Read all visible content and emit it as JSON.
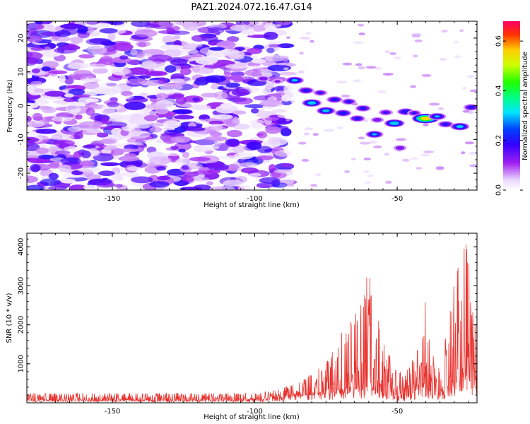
{
  "title": "PAZ1.2024.072.16.47.G14",
  "colorbar": {
    "label": "Normalized spectral amplitude",
    "range": [
      0.0,
      0.68
    ],
    "ticks": [
      "0.0",
      "0.2",
      "0.4",
      "0.6"
    ],
    "tick_values": [
      0.0,
      0.2,
      0.4,
      0.6
    ]
  },
  "colors": {
    "snr_line": "#e8332f"
  },
  "chart_data": [
    {
      "type": "heatmap",
      "xlabel": "Height of straight line (km)",
      "ylabel": "Frequency (Hz)",
      "xlim": [
        -180,
        -22
      ],
      "ylim": [
        -25,
        25
      ],
      "xticks": [
        "-150",
        "-100",
        "-50"
      ],
      "xtick_values": [
        -150,
        -100,
        -50
      ],
      "yticks": [
        "20",
        "10",
        "0",
        "-10",
        "-20"
      ],
      "ytick_values": [
        20,
        10,
        0,
        -10,
        -20
      ],
      "colormap": "gist_rainbow-like (white to purple to blue to green to yellow to red)",
      "features": {
        "background_noise_region_km": [
          -180,
          -90
        ],
        "background_amplitude": [
          0.02,
          0.2
        ],
        "signal_track": [
          {
            "x": -97,
            "f": 8.0,
            "amp": 0.18
          },
          {
            "x": -92,
            "f": 7.2,
            "amp": 0.14
          },
          {
            "x": -86,
            "f": 7.5,
            "amp": 0.32
          },
          {
            "x": -82,
            "f": 4.5,
            "amp": 0.25
          },
          {
            "x": -80,
            "f": 0.8,
            "amp": 0.36
          },
          {
            "x": -77,
            "f": 3.8,
            "amp": 0.2
          },
          {
            "x": -75,
            "f": -1.5,
            "amp": 0.34
          },
          {
            "x": -72,
            "f": 1.8,
            "amp": 0.25
          },
          {
            "x": -69,
            "f": -2.2,
            "amp": 0.27
          },
          {
            "x": -67,
            "f": 1.2,
            "amp": 0.22
          },
          {
            "x": -64,
            "f": -3.8,
            "amp": 0.24
          },
          {
            "x": -62,
            "f": -0.8,
            "amp": 0.24
          },
          {
            "x": -58,
            "f": -8.5,
            "amp": 0.3
          },
          {
            "x": -57,
            "f": -4.2,
            "amp": 0.18
          },
          {
            "x": -54,
            "f": -2.0,
            "amp": 0.2
          },
          {
            "x": -51,
            "f": -5.2,
            "amp": 0.38
          },
          {
            "x": -49,
            "f": -12.5,
            "amp": 0.18
          },
          {
            "x": -47,
            "f": -1.8,
            "amp": 0.28
          },
          {
            "x": -44,
            "f": -2.2,
            "amp": 0.2
          },
          {
            "x": -40,
            "f": -3.8,
            "amp": 0.62
          },
          {
            "x": -36,
            "f": -3.2,
            "amp": 0.3
          },
          {
            "x": -33,
            "f": -5.5,
            "amp": 0.24
          },
          {
            "x": -28,
            "f": -6.2,
            "amp": 0.34
          },
          {
            "x": -24,
            "f": -0.5,
            "amp": 0.24
          },
          {
            "x": -35,
            "f": -18.5,
            "amp": 0.1
          }
        ]
      }
    },
    {
      "type": "line",
      "xlabel": "Height of straight line (km)",
      "ylabel": "SNR (10 * v/v)",
      "xlim": [
        -180,
        -22
      ],
      "ylim": [
        0,
        4350
      ],
      "xticks": [
        "-150",
        "-100",
        "-50"
      ],
      "xtick_values": [
        -150,
        -100,
        -50
      ],
      "yticks": [
        "1000",
        "2000",
        "3000",
        "4000"
      ],
      "ytick_values": [
        1000,
        2000,
        3000,
        4000
      ],
      "series": [
        {
          "color": "#e8332f",
          "envelope": [
            {
              "x": -180,
              "base": 60,
              "peak": 250
            },
            {
              "x": -100,
              "base": 60,
              "peak": 250
            },
            {
              "x": -93,
              "base": 100,
              "peak": 320
            },
            {
              "x": -85,
              "base": 200,
              "peak": 500
            },
            {
              "x": -80,
              "base": 200,
              "peak": 750
            },
            {
              "x": -75,
              "base": 250,
              "peak": 1000
            },
            {
              "x": -70,
              "base": 300,
              "peak": 1900
            },
            {
              "x": -66,
              "base": 400,
              "peak": 2300
            },
            {
              "x": -63,
              "base": 300,
              "peak": 2500
            },
            {
              "x": -60,
              "base": 400,
              "peak": 3450
            },
            {
              "x": -57,
              "base": 400,
              "peak": 2250
            },
            {
              "x": -54,
              "base": 250,
              "peak": 1650
            },
            {
              "x": -51,
              "base": 150,
              "peak": 900
            },
            {
              "x": -48,
              "base": 120,
              "peak": 750
            },
            {
              "x": -45,
              "base": 200,
              "peak": 1050
            },
            {
              "x": -42,
              "base": 400,
              "peak": 1700
            },
            {
              "x": -40,
              "base": 400,
              "peak": 2700
            },
            {
              "x": -38,
              "base": 250,
              "peak": 1300
            },
            {
              "x": -35,
              "base": 200,
              "peak": 900
            },
            {
              "x": -32,
              "base": 400,
              "peak": 2400
            },
            {
              "x": -29,
              "base": 500,
              "peak": 3600
            },
            {
              "x": -27,
              "base": 600,
              "peak": 4300
            },
            {
              "x": -25,
              "base": 700,
              "peak": 4200
            },
            {
              "x": -22,
              "base": 600,
              "peak": 3200
            }
          ]
        }
      ]
    }
  ]
}
